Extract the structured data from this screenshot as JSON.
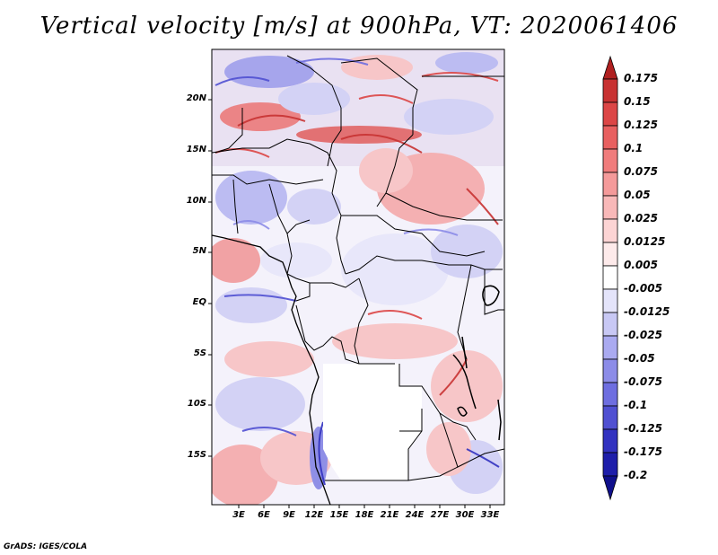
{
  "title": "Vertical velocity [m/s] at 900hPa, VT: 2020061406",
  "credit": "GrADS: IGES/COLA",
  "lat_ticks": [
    "20N",
    "15N",
    "10N",
    "5N",
    "EQ",
    "5S",
    "10S",
    "15S"
  ],
  "lon_ticks": [
    "3E",
    "6E",
    "9E",
    "12E",
    "15E",
    "18E",
    "21E",
    "24E",
    "27E",
    "30E",
    "33E"
  ],
  "colorbar": {
    "labels": [
      "0.175",
      "0.15",
      "0.125",
      "0.1",
      "0.075",
      "0.05",
      "0.025",
      "0.0125",
      "0.005",
      "-0.005",
      "-0.0125",
      "-0.025",
      "-0.05",
      "-0.075",
      "-0.1",
      "-0.125",
      "-0.175",
      "-0.2"
    ],
    "colors": [
      "#b02020",
      "#c83232",
      "#dc4646",
      "#e86060",
      "#f07c7c",
      "#f49a9a",
      "#f8b8b8",
      "#fcd4d4",
      "#fdeaea",
      "#ffffff",
      "#e4e4fa",
      "#c8c8f4",
      "#aaaaf0",
      "#8c8ce8",
      "#6e6ee0",
      "#5050d2",
      "#3232c0",
      "#1e1eaa",
      "#10108c"
    ]
  }
}
